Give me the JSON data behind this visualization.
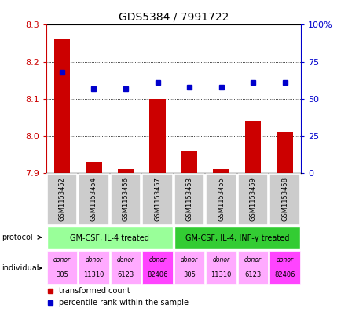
{
  "title": "GDS5384 / 7991722",
  "samples": [
    "GSM1153452",
    "GSM1153454",
    "GSM1153456",
    "GSM1153457",
    "GSM1153453",
    "GSM1153455",
    "GSM1153459",
    "GSM1153458"
  ],
  "transformed_count": [
    8.26,
    7.93,
    7.91,
    8.1,
    7.96,
    7.91,
    8.04,
    8.01
  ],
  "percentile_rank": [
    68,
    57,
    57,
    61,
    58,
    58,
    61,
    61
  ],
  "ylim_left": [
    7.9,
    8.3
  ],
  "ylim_right": [
    0,
    100
  ],
  "yticks_left": [
    7.9,
    8.0,
    8.1,
    8.2,
    8.3
  ],
  "yticks_right": [
    0,
    25,
    50,
    75,
    100
  ],
  "bar_color": "#cc0000",
  "dot_color": "#0000cc",
  "bar_width": 0.5,
  "protocol_labels": [
    "GM-CSF, IL-4 treated",
    "GM-CSF, IL-4, INF-γ treated"
  ],
  "protocol_ranges": [
    [
      0,
      4
    ],
    [
      4,
      8
    ]
  ],
  "protocol_color_light": "#99ff99",
  "protocol_color_dark": "#33cc33",
  "individual_colors": [
    "#ffaaff",
    "#ffaaff",
    "#ffaaff",
    "#ff44ff",
    "#ffaaff",
    "#ffaaff",
    "#ffaaff",
    "#ff44ff"
  ],
  "ind_labels_top": [
    "donor",
    "donor",
    "donor",
    "donor",
    "donor",
    "donor",
    "donor",
    "donor"
  ],
  "ind_labels_bottom": [
    "305",
    "11310",
    "6123",
    "82406",
    "305",
    "11310",
    "6123",
    "82406"
  ],
  "row_label_protocol": "protocol",
  "row_label_individual": "individual",
  "legend_items": [
    "transformed count",
    "percentile rank within the sample"
  ],
  "legend_colors": [
    "#cc0000",
    "#0000cc"
  ],
  "axis_left_color": "#cc0000",
  "axis_right_color": "#0000cc",
  "base_value": 7.9,
  "sample_box_color": "#cccccc",
  "title_fontsize": 10,
  "axis_fontsize": 8,
  "small_fontsize": 6.5
}
